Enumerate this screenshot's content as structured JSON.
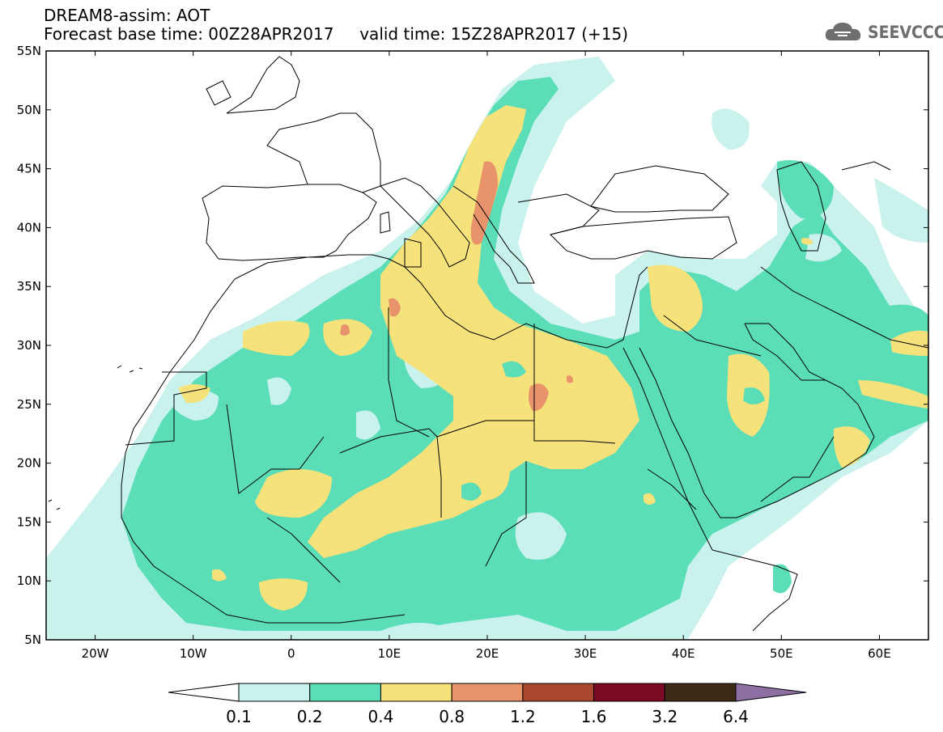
{
  "header": {
    "line1": "DREAM8-assim: AOT",
    "line2": "Forecast base time: 00Z28APR2017     valid time: 15Z28APR2017 (+15)"
  },
  "logo": {
    "text": "SEEVCCC",
    "icon": "cloud-icon"
  },
  "map": {
    "lon_range": [
      -25,
      65
    ],
    "lat_range": [
      5,
      55
    ],
    "lat_ticks": [
      "55N",
      "50N",
      "45N",
      "40N",
      "35N",
      "30N",
      "25N",
      "20N",
      "15N",
      "10N",
      "5N"
    ],
    "lon_ticks": [
      "20W",
      "10W",
      "0",
      "10E",
      "20E",
      "30E",
      "40E",
      "50E",
      "60E"
    ]
  },
  "legend": {
    "labels": [
      "0.1",
      "0.2",
      "0.4",
      "0.8",
      "1.2",
      "1.6",
      "3.2",
      "6.4"
    ],
    "colors": [
      "#ffffff",
      "#c9f2ec",
      "#5bddb8",
      "#f5e27a",
      "#e8936b",
      "#a9482f",
      "#7c0a25",
      "#3d2a16",
      "#8d6fa3"
    ]
  },
  "colors": {
    "c01": "#c9f2ec",
    "c02": "#5bddb8",
    "c04": "#f5e27a",
    "c08": "#e8936b"
  }
}
